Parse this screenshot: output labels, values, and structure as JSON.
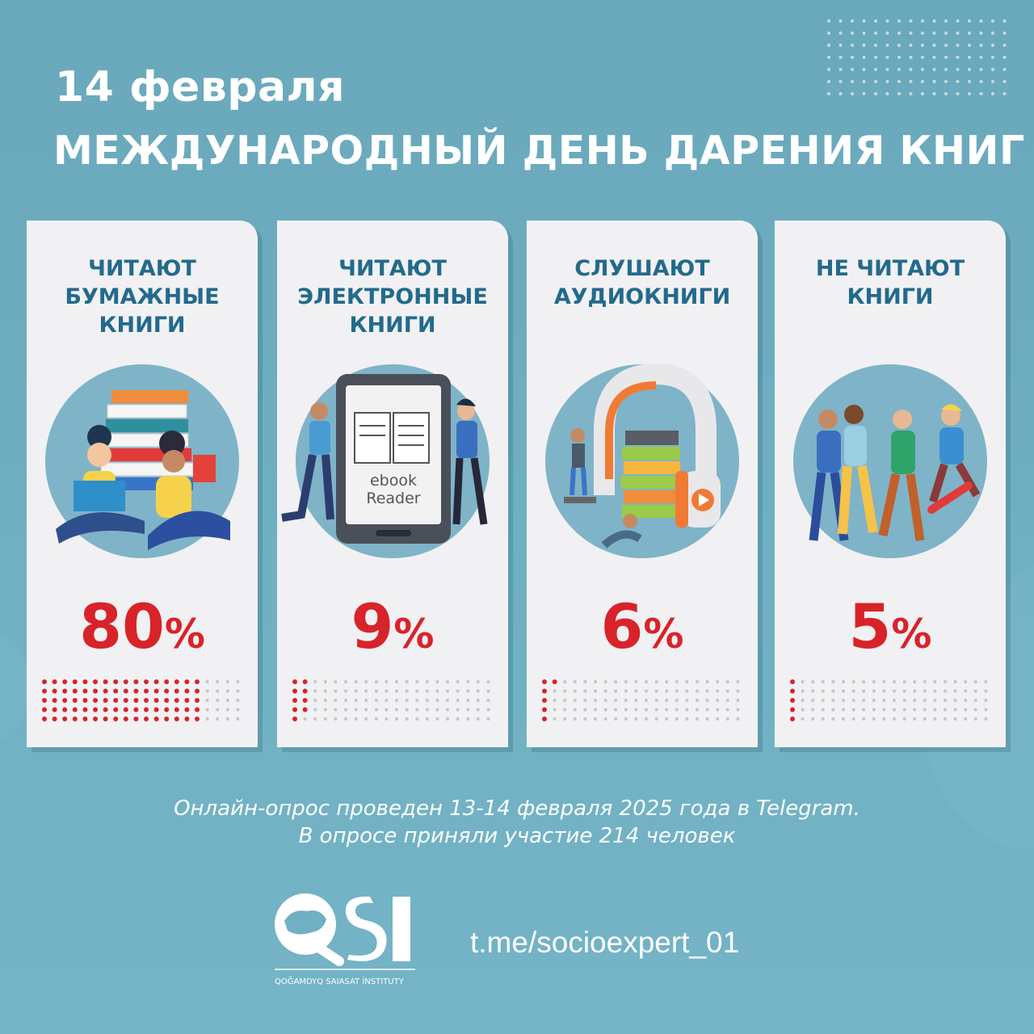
{
  "header": {
    "date": "14 февраля",
    "event": "МЕЖДУНАРОДНЫЙ ДЕНЬ ДАРЕНИЯ КНИГ"
  },
  "chart_data": {
    "type": "bar",
    "categories": [
      "ЧИТАЮТ БУМАЖНЫЕ КНИГИ",
      "ЧИТАЮТ ЭЛЕКТРОННЫЕ КНИГИ",
      "СЛУШАЮТ АУДИОКНИГИ",
      "НЕ ЧИТАЮТ КНИГИ"
    ],
    "values": [
      80,
      9,
      6,
      5
    ],
    "unit": "%",
    "dot_grid_total": 100
  },
  "cards": [
    {
      "title_lines": [
        "ЧИТАЮТ",
        "БУМАЖНЫЕ",
        "КНИГИ"
      ],
      "value": "80",
      "unit": "%",
      "illustration": "paper-books-readers-icon"
    },
    {
      "title_lines": [
        "ЧИТАЮТ",
        "ЭЛЕКТРОННЫЕ",
        "КНИГИ"
      ],
      "value": "9",
      "unit": "%",
      "illustration": "ebook-reader-icon",
      "device_text_1": "ebook",
      "device_text_2": "Reader"
    },
    {
      "title_lines": [
        "СЛУШАЮТ",
        "АУДИОКНИГИ"
      ],
      "value": "6",
      "unit": "%",
      "illustration": "headphones-books-icon"
    },
    {
      "title_lines": [
        "НЕ ЧИТАЮТ",
        "КНИГИ"
      ],
      "value": "5",
      "unit": "%",
      "illustration": "friends-group-icon"
    }
  ],
  "footer": {
    "note_line1": "Онлайн-опрос проведен 13-14 февраля 2025 года в Telegram.",
    "note_line2": "В опросе приняли участие 214 человек",
    "logo_text": "QSI",
    "logo_subtitle": "QOĞAMDYQ SAIASAT İNSTITUTY",
    "link": "t.me/socioexpert_01"
  },
  "colors": {
    "accent_red": "#d8232a",
    "title_blue": "#236a8c",
    "dot_grey": "#c5c5c8"
  }
}
